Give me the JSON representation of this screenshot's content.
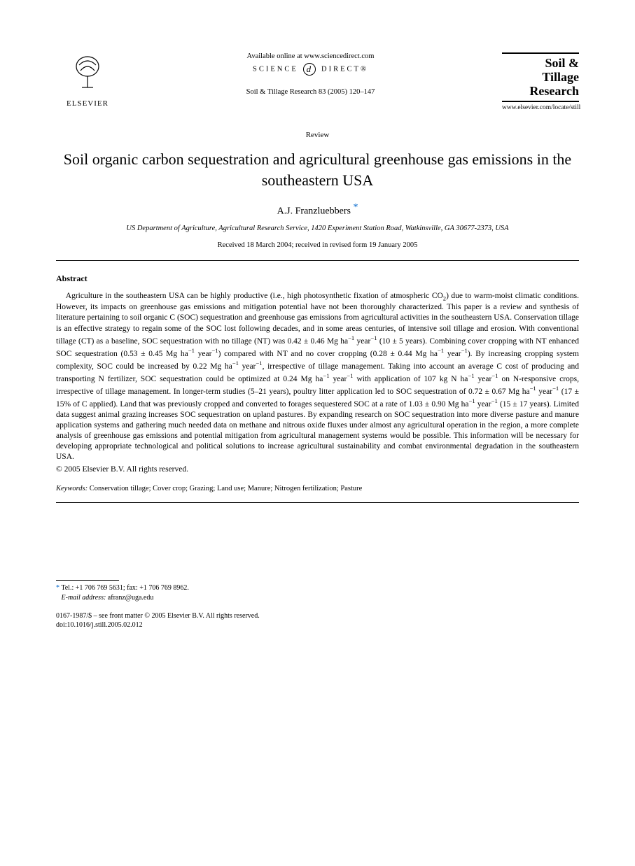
{
  "header": {
    "publisher_name": "ELSEVIER",
    "avail_online": "Available online at www.sciencedirect.com",
    "science_text_left": "SCIENCE",
    "science_text_right": "DIRECT®",
    "sd_glyph": "d",
    "citation": "Soil & Tillage Research 83 (2005) 120–147",
    "journal_logo_line1": "Soil &",
    "journal_logo_line2": "Tillage",
    "journal_logo_line3": "Research",
    "journal_url": "www.elsevier.com/locate/still"
  },
  "article": {
    "type_label": "Review",
    "title": "Soil organic carbon sequestration and agricultural greenhouse gas emissions in the southeastern USA",
    "author_name": "A.J. Franzluebbers",
    "author_mark": "*",
    "affiliation": "US Department of Agriculture, Agricultural Research Service, 1420 Experiment Station Road, Watkinsville, GA 30677-2373, USA",
    "dates": "Received 18 March 2004; received in revised form 19 January 2005"
  },
  "abstract": {
    "heading": "Abstract",
    "body_html": "Agriculture in the southeastern USA can be highly productive (i.e., high photosynthetic fixation of atmospheric CO<sub>2</sub>) due to warm-moist climatic conditions. However, its impacts on greenhouse gas emissions and mitigation potential have not been thoroughly characterized. This paper is a review and synthesis of literature pertaining to soil organic C (SOC) sequestration and greenhouse gas emissions from agricultural activities in the southeastern USA. Conservation tillage is an effective strategy to regain some of the SOC lost following decades, and in some areas centuries, of intensive soil tillage and erosion. With conventional tillage (CT) as a baseline, SOC sequestration with no tillage (NT) was 0.42 ± 0.46 Mg ha<sup>−1</sup> year<sup>−1</sup> (10 ± 5 years). Combining cover cropping with NT enhanced SOC sequestration (0.53 ± 0.45 Mg ha<sup>−1</sup> year<sup>−1</sup>) compared with NT and no cover cropping (0.28 ± 0.44 Mg ha<sup>−1</sup> year<sup>−1</sup>). By increasing cropping system complexity, SOC could be increased by 0.22 Mg ha<sup>−1</sup> year<sup>−1</sup>, irrespective of tillage management. Taking into account an average C cost of producing and transporting N fertilizer, SOC sequestration could be optimized at 0.24 Mg ha<sup>−1</sup> year<sup>−1</sup> with application of 107 kg N ha<sup>−1</sup> year<sup>−1</sup> on N-responsive crops, irrespective of tillage management. In longer-term studies (5–21 years), poultry litter application led to SOC sequestration of 0.72 ± 0.67 Mg ha<sup>−1</sup> year<sup>−1</sup> (17 ± 15% of C applied). Land that was previously cropped and converted to forages sequestered SOC at a rate of 1.03 ± 0.90 Mg ha<sup>−1</sup> year<sup>−1</sup> (15 ± 17 years). Limited data suggest animal grazing increases SOC sequestration on upland pastures. By expanding research on SOC sequestration into more diverse pasture and manure application systems and gathering much needed data on methane and nitrous oxide fluxes under almost any agricultural operation in the region, a more complete analysis of greenhouse gas emissions and potential mitigation from agricultural management systems would be possible. This information will be necessary for developing appropriate technological and political solutions to increase agricultural sustainability and combat environmental degradation in the southeastern USA.",
    "copyright": "© 2005 Elsevier B.V. All rights reserved."
  },
  "keywords": {
    "label": "Keywords:",
    "list": "Conservation tillage; Cover crop; Grazing; Land use; Manure; Nitrogen fertilization; Pasture"
  },
  "footnote": {
    "mark": "*",
    "contact": "Tel.: +1 706 769 5631; fax: +1 706 769 8962.",
    "email_label": "E-mail address:",
    "email": "afranz@uga.edu"
  },
  "footer": {
    "issn_line": "0167-1987/$ – see front matter © 2005 Elsevier B.V. All rights reserved.",
    "doi_line": "doi:10.1016/j.still.2005.02.012"
  },
  "colors": {
    "link": "#0066cc",
    "text": "#000000",
    "background": "#ffffff"
  },
  "typography": {
    "title_fontsize": 22,
    "body_fontsize": 11.5,
    "small_fontsize": 10.5,
    "footnote_fontsize": 10
  }
}
